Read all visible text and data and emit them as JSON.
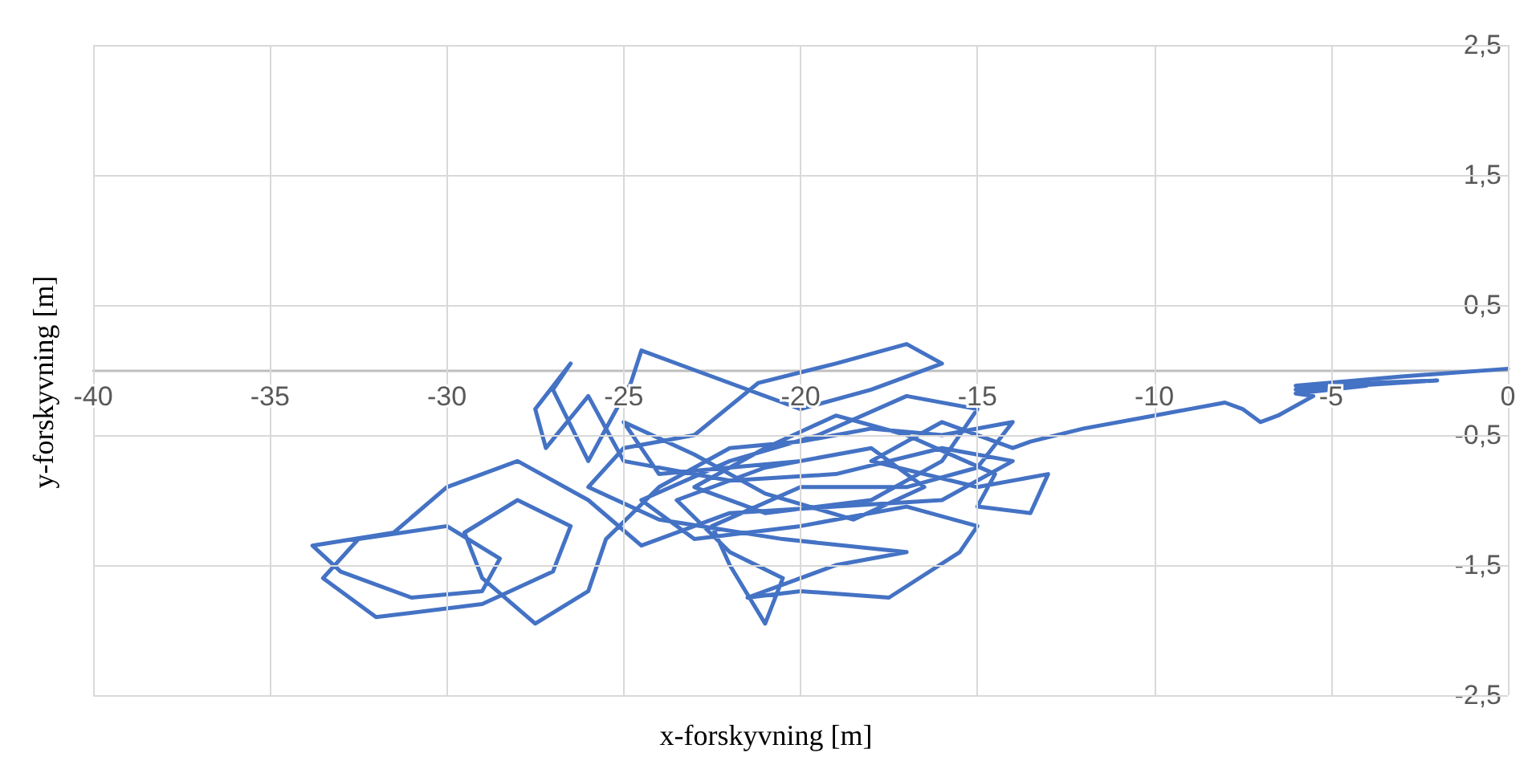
{
  "chart_data": {
    "type": "line",
    "xlabel": "x-forskyvning [m]",
    "ylabel": "y-forskyvning [m]",
    "xlim": [
      -40,
      0
    ],
    "ylim": [
      -2.5,
      2.5
    ],
    "xticks": [
      -40,
      -35,
      -30,
      -25,
      -20,
      -15,
      -10,
      -5,
      0
    ],
    "yticks": [
      {
        "value": -2.5,
        "label": "-2,5"
      },
      {
        "value": -1.5,
        "label": "-1,5"
      },
      {
        "value": -0.5,
        "label": "-0,5"
      },
      {
        "value": 0.5,
        "label": "0,5"
      },
      {
        "value": 1.5,
        "label": "1,5"
      },
      {
        "value": 2.5,
        "label": "2,5"
      }
    ],
    "grid": true,
    "marker": "none",
    "line_style": "solid",
    "series": [
      {
        "color": "#4472c4",
        "x": [
          0,
          -3,
          -6,
          -2,
          -6,
          -4,
          -6,
          -5.5,
          -6.5,
          -7,
          -7.5,
          -8,
          -9,
          -10,
          -12,
          -13.5,
          -14,
          -16,
          -18,
          -15,
          -13,
          -13.5,
          -15,
          -14.5,
          -17,
          -19,
          -21,
          -23,
          -21,
          -18,
          -16,
          -15,
          -17,
          -19.5,
          -22,
          -24.5,
          -23,
          -20,
          -17,
          -15,
          -15.5,
          -17.5,
          -20,
          -21.5,
          -19,
          -17,
          -20.5,
          -24,
          -26,
          -25,
          -23,
          -21.2,
          -19,
          -17,
          -16,
          -18,
          -20,
          -23,
          -24.5,
          -24.8,
          -26,
          -27,
          -26.5,
          -27.5,
          -27.2,
          -26,
          -25,
          -22,
          -19,
          -16,
          -14,
          -16,
          -19,
          -22,
          -24.5,
          -26,
          -28,
          -30,
          -31.5,
          -33.8,
          -33,
          -31,
          -29,
          -28.5,
          -30,
          -32.5,
          -33.5,
          -32,
          -29,
          -27,
          -26.5,
          -28,
          -29.5,
          -29,
          -27.5,
          -26,
          -25.5,
          -24,
          -22,
          -20,
          -18,
          -16,
          -14,
          -15,
          -17,
          -20,
          -22.5,
          -22,
          -21,
          -20.5,
          -22,
          -23.5,
          -21,
          -18,
          -16.5,
          -18.5,
          -21,
          -23,
          -25,
          -24,
          -20
        ],
        "values": [
          0.01,
          -0.05,
          -0.12,
          -0.08,
          -0.15,
          -0.12,
          -0.18,
          -0.2,
          -0.35,
          -0.4,
          -0.3,
          -0.25,
          -0.3,
          -0.35,
          -0.45,
          -0.55,
          -0.6,
          -0.4,
          -0.7,
          -0.9,
          -0.8,
          -1.1,
          -1.05,
          -0.8,
          -0.5,
          -0.35,
          -0.6,
          -0.9,
          -1.1,
          -1.0,
          -0.7,
          -0.3,
          -0.2,
          -0.5,
          -0.7,
          -1.0,
          -1.3,
          -1.2,
          -1.05,
          -1.2,
          -1.4,
          -1.75,
          -1.7,
          -1.75,
          -1.5,
          -1.4,
          -1.3,
          -1.15,
          -0.9,
          -0.6,
          -0.5,
          -0.1,
          0.05,
          0.2,
          0.05,
          -0.15,
          -0.3,
          0.0,
          0.15,
          -0.1,
          -0.7,
          -0.15,
          0.05,
          -0.3,
          -0.6,
          -0.2,
          -0.7,
          -0.85,
          -0.8,
          -0.6,
          -0.7,
          -1.0,
          -1.05,
          -1.1,
          -1.35,
          -1.0,
          -0.7,
          -0.9,
          -1.25,
          -1.35,
          -1.55,
          -1.75,
          -1.7,
          -1.45,
          -1.2,
          -1.3,
          -1.6,
          -1.9,
          -1.8,
          -1.55,
          -1.2,
          -1.0,
          -1.25,
          -1.6,
          -1.95,
          -1.7,
          -1.3,
          -0.9,
          -0.6,
          -0.55,
          -0.45,
          -0.5,
          -0.4,
          -0.75,
          -0.9,
          -0.9,
          -1.2,
          -1.5,
          -1.95,
          -1.6,
          -1.4,
          -1.0,
          -0.75,
          -0.6,
          -0.9,
          -1.15,
          -0.95,
          -0.65,
          -0.4,
          -0.8,
          -0.7
        ]
      }
    ]
  }
}
